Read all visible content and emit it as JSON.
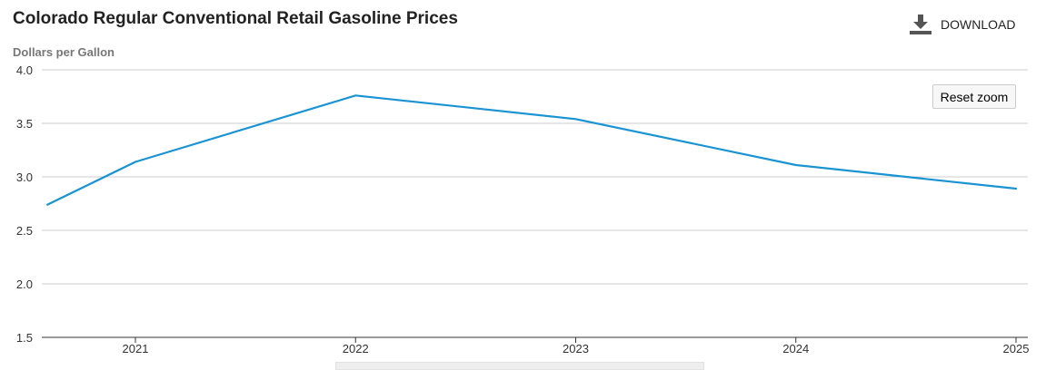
{
  "header": {
    "title": "Colorado Regular Conventional Retail Gasoline Prices",
    "download_label": "DOWNLOAD",
    "download_icon": "download-icon"
  },
  "controls": {
    "reset_zoom_label": "Reset zoom"
  },
  "colors": {
    "series": "#1a93d3",
    "grid": "#cccccc",
    "axis": "#333333",
    "ylabel": "#777777"
  },
  "chart_data": {
    "type": "line",
    "title": "Colorado Regular Conventional Retail Gasoline Prices",
    "ylabel": "Dollars per Gallon",
    "xlabel": "",
    "ylim": [
      1.5,
      4.0
    ],
    "yticks": [
      "4.0",
      "3.5",
      "3.0",
      "2.5",
      "2.0",
      "1.5"
    ],
    "xticks": [
      "2021",
      "2022",
      "2023",
      "2024",
      "2025"
    ],
    "xlim": [
      2020.6,
      2025.0
    ],
    "grid": true,
    "series": [
      {
        "x": [
          2020.6,
          2021.0,
          2022.0,
          2023.0,
          2024.0,
          2025.0
        ],
        "y": [
          2.74,
          3.14,
          3.76,
          3.54,
          3.11,
          2.89
        ]
      }
    ]
  }
}
